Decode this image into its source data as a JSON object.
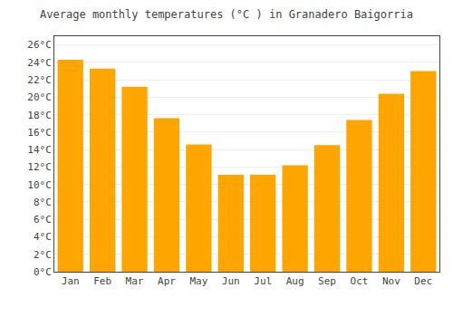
{
  "chart_data": {
    "type": "bar",
    "title": "Average monthly temperatures (°C ) in Granadero Baigorria",
    "categories": [
      "Jan",
      "Feb",
      "Mar",
      "Apr",
      "May",
      "Jun",
      "Jul",
      "Aug",
      "Sep",
      "Oct",
      "Nov",
      "Dec"
    ],
    "values": [
      24.3,
      23.3,
      21.2,
      17.6,
      14.6,
      11.1,
      11.1,
      12.2,
      14.5,
      17.4,
      20.4,
      23.0
    ],
    "color": "#FFA500",
    "ylim": [
      0,
      27
    ],
    "yticks": [
      {
        "value": 0,
        "label": "0°C"
      },
      {
        "value": 2,
        "label": "2°C"
      },
      {
        "value": 4,
        "label": "4°C"
      },
      {
        "value": 6,
        "label": "6°C"
      },
      {
        "value": 8,
        "label": "8°C"
      },
      {
        "value": 10,
        "label": "10°C"
      },
      {
        "value": 12,
        "label": "12°C"
      },
      {
        "value": 14,
        "label": "14°C"
      },
      {
        "value": 16,
        "label": "16°C"
      },
      {
        "value": 18,
        "label": "18°C"
      },
      {
        "value": 20,
        "label": "20°C"
      },
      {
        "value": 22,
        "label": "22°C"
      },
      {
        "value": 24,
        "label": "24°C"
      },
      {
        "value": 26,
        "label": "26°C"
      }
    ],
    "grid": true
  }
}
